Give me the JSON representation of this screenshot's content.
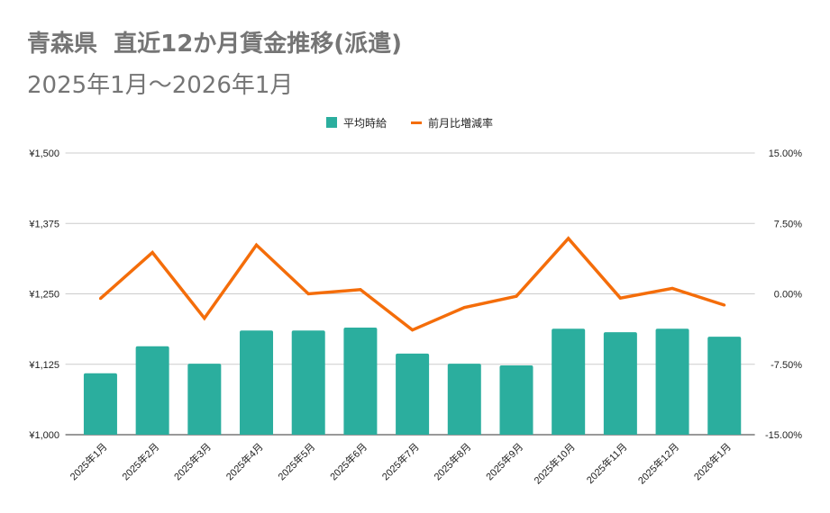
{
  "chart_data": {
    "type": "bar+line",
    "title": "青森県  直近12か月賃金推移(派遣)",
    "subtitle": "2025年1月～2026年1月",
    "categories": [
      "2025年1月",
      "2025年2月",
      "2025年3月",
      "2025年4月",
      "2025年5月",
      "2025年6月",
      "2025年7月",
      "2025年8月",
      "2025年9月",
      "2025年10月",
      "2025年11月",
      "2025年12月",
      "2026年1月"
    ],
    "series": [
      {
        "name": "平均時給",
        "type": "bar",
        "axis": "left",
        "color": "#2bae9e",
        "values": [
          1109,
          1157,
          1126,
          1185,
          1185,
          1190,
          1144,
          1126,
          1123,
          1188,
          1182,
          1188,
          1174
        ]
      },
      {
        "name": "前月比増減率",
        "type": "line",
        "axis": "right",
        "color": "#f46d0a",
        "values": [
          -0.5,
          4.4,
          -2.6,
          5.2,
          0.0,
          0.45,
          -3.85,
          -1.45,
          -0.26,
          5.9,
          -0.45,
          0.58,
          -1.2
        ]
      }
    ],
    "left_axis": {
      "ylim": [
        1000,
        1500
      ],
      "ticks": [
        "¥1,000",
        "¥1,125",
        "¥1,250",
        "¥1,375",
        "¥1,500"
      ]
    },
    "right_axis": {
      "ylim": [
        -15,
        15
      ],
      "ticks": [
        "-15.00%",
        "-7.50%",
        "0.00%",
        "7.50%",
        "15.00%"
      ]
    },
    "grid": true,
    "legend": "top"
  }
}
